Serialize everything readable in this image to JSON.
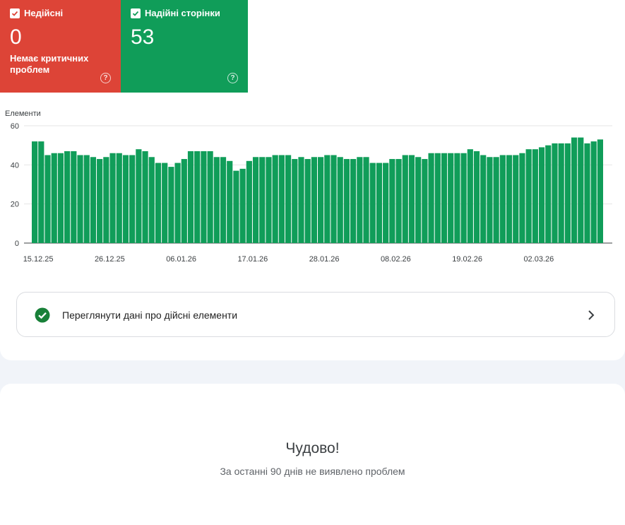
{
  "cards": {
    "invalid": {
      "label": "Недійсні",
      "count": "0",
      "subtitle": "Немає критичних проблем",
      "color": "#dd4437"
    },
    "valid": {
      "label": "Надійні сторінки",
      "count": "53",
      "color": "#109d59"
    }
  },
  "chart_data": {
    "type": "bar",
    "ylabel": "Елементи",
    "ylim": [
      0,
      60
    ],
    "yticks": [
      0,
      20,
      40,
      60
    ],
    "grid": true,
    "bar_color": "#109d59",
    "x_tick_labels": [
      "15.12.25",
      "26.12.25",
      "06.01.26",
      "17.01.26",
      "28.01.26",
      "08.02.26",
      "19.02.26",
      "02.03.26"
    ],
    "x_tick_indices": [
      0,
      11,
      22,
      33,
      44,
      55,
      66,
      77
    ],
    "values": [
      52,
      52,
      45,
      46,
      46,
      47,
      47,
      45,
      45,
      44,
      43,
      44,
      46,
      46,
      45,
      45,
      48,
      47,
      44,
      41,
      41,
      39,
      41,
      43,
      47,
      47,
      47,
      47,
      44,
      44,
      42,
      37,
      38,
      42,
      44,
      44,
      44,
      45,
      45,
      45,
      43,
      44,
      43,
      44,
      44,
      45,
      45,
      44,
      43,
      43,
      44,
      44,
      41,
      41,
      41,
      43,
      43,
      45,
      45,
      44,
      43,
      46,
      46,
      46,
      46,
      46,
      46,
      48,
      47,
      45,
      44,
      44,
      45,
      45,
      45,
      46,
      48,
      48,
      49,
      50,
      51,
      51,
      51,
      54,
      54,
      51,
      52,
      53
    ]
  },
  "link_row": {
    "label": "Переглянути дані про дійсні елементи"
  },
  "summary": {
    "title": "Чудово!",
    "subtitle": "За останні 90 днів не виявлено проблем"
  }
}
